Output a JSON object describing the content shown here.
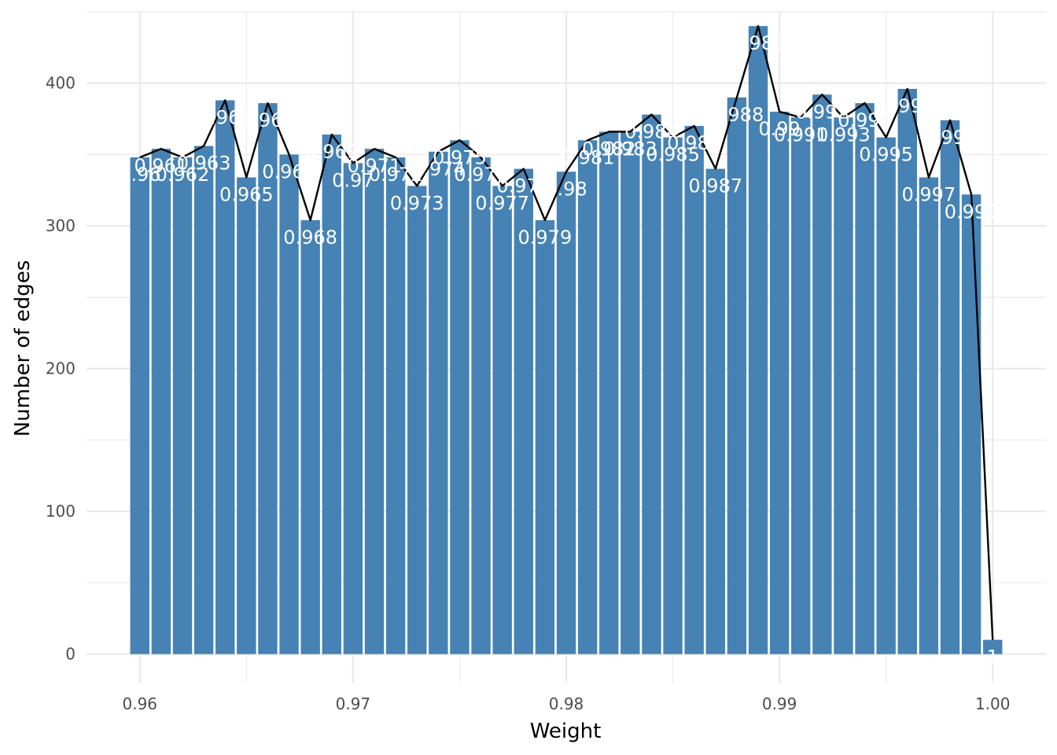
{
  "chart_data": {
    "type": "bar",
    "xlabel": "Weight",
    "ylabel": "Number of edges",
    "xlim": [
      0.9575,
      1.0025
    ],
    "ylim": [
      -20,
      450
    ],
    "x_ticks": [
      0.96,
      0.97,
      0.98,
      0.99,
      1.0
    ],
    "x_tick_labels": [
      "0.96",
      "0.97",
      "0.98",
      "0.99",
      "1.00"
    ],
    "y_ticks": [
      0,
      100,
      200,
      300,
      400
    ],
    "y_tick_labels": [
      "0",
      "100",
      "200",
      "300",
      "400"
    ],
    "grid": true,
    "bar_color": "#4682B4",
    "line_color": "#000000",
    "label_color": "#ffffff",
    "x": [
      0.96,
      0.961,
      0.962,
      0.963,
      0.964,
      0.965,
      0.966,
      0.967,
      0.968,
      0.969,
      0.97,
      0.971,
      0.972,
      0.973,
      0.974,
      0.975,
      0.976,
      0.977,
      0.978,
      0.979,
      0.98,
      0.981,
      0.982,
      0.983,
      0.984,
      0.985,
      0.986,
      0.987,
      0.988,
      0.989,
      0.99,
      0.991,
      0.992,
      0.993,
      0.994,
      0.995,
      0.996,
      0.997,
      0.998,
      0.999,
      1.0
    ],
    "values": [
      348,
      354,
      348,
      356,
      388,
      334,
      386,
      350,
      304,
      364,
      344,
      354,
      348,
      328,
      352,
      360,
      348,
      328,
      340,
      304,
      338,
      360,
      366,
      366,
      378,
      362,
      370,
      340,
      390,
      440,
      380,
      376,
      392,
      376,
      386,
      362,
      396,
      334,
      374,
      322,
      10
    ],
    "labels": [
      "0.96",
      "0.961",
      "0.962",
      "0.963",
      "0.964",
      "0.965",
      "0.966",
      "0.967",
      "0.968",
      "0.969",
      "0.97",
      "0.971",
      "0.972",
      "0.973",
      "0.974",
      "0.975",
      "0.976",
      "0.977",
      "0.978",
      "0.979",
      "0.98",
      "0.981",
      "0.982",
      "0.983",
      "0.984",
      "0.985",
      "0.986",
      "0.987",
      "0.988",
      "0.989",
      "0.99",
      "0.991",
      "0.992",
      "0.993",
      "0.994",
      "0.995",
      "0.996",
      "0.997",
      "0.998",
      "0.999",
      "1"
    ]
  }
}
